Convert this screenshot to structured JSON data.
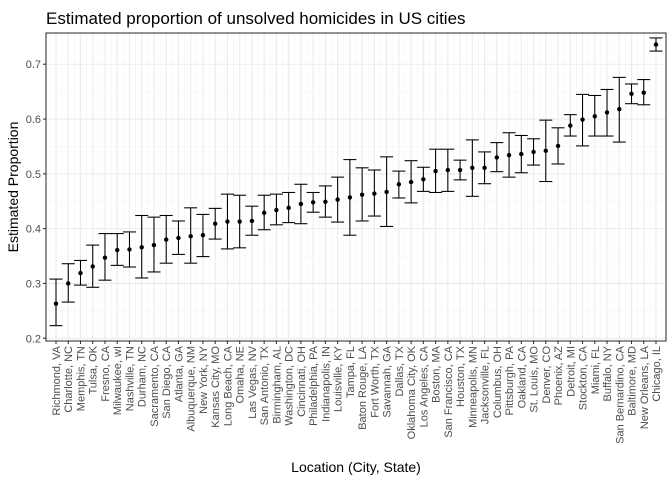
{
  "chart_data": {
    "type": "scatter",
    "title": "Estimated proportion of unsolved homicides in US cities",
    "xlabel": "Location (City, State)",
    "ylabel": "Estimated Proportion",
    "ylim": [
      0.2,
      0.75
    ],
    "yticks": [
      0.2,
      0.3,
      0.4,
      0.5,
      0.6,
      0.7
    ],
    "ytick_labels": [
      "0.2",
      "0.3",
      "0.4",
      "0.5",
      "0.6",
      "0.7"
    ],
    "grid": true,
    "legend": "none",
    "point_color": "#000000",
    "categories": [
      "Richmond, VA",
      "Charlotte, NC",
      "Memphis, TN",
      "Tulsa, OK",
      "Fresno, CA",
      "Milwaukee, wI",
      "Nashville, TN",
      "Durham, NC",
      "Sacramento, CA",
      "San Diego, CA",
      "Atlanta, GA",
      "Albuquerque, NM",
      "New York, NY",
      "Kansas City, MO",
      "Long Beach, CA",
      "Omaha, NE",
      "Las Vegas, NV",
      "San Antonio, TX",
      "Birmingham, AL",
      "Washington, DC",
      "Cincinnati, OH",
      "Philadelphia, PA",
      "Indianapolis, IN",
      "Louisville, KY",
      "Tampa, FL",
      "Baton Rouge, LA",
      "Fort Worth, TX",
      "Savannah, GA",
      "Dallas, TX",
      "Oklahoma City, OK",
      "Los Angeles, CA",
      "Boston, MA",
      "San Francisco, CA",
      "Houston, TX",
      "Minneapolis, MN",
      "Jacksonville, FL",
      "Columbus, OH",
      "Pittsburgh, PA",
      "Oakland, CA",
      "St. Louis, MO",
      "Denver, CO",
      "Phoenix, AZ",
      "Detroit, MI",
      "Stockton, CA",
      "Miami, FL",
      "Buffalo, NY",
      "San Bernardino, CA",
      "Baltimore, MD",
      "New Orleans, LA",
      "Chicago, IL"
    ],
    "estimate": [
      0.263,
      0.3,
      0.319,
      0.331,
      0.347,
      0.361,
      0.362,
      0.366,
      0.37,
      0.38,
      0.383,
      0.386,
      0.388,
      0.409,
      0.413,
      0.413,
      0.414,
      0.429,
      0.434,
      0.438,
      0.445,
      0.448,
      0.449,
      0.453,
      0.457,
      0.462,
      0.464,
      0.467,
      0.481,
      0.485,
      0.49,
      0.505,
      0.507,
      0.507,
      0.511,
      0.511,
      0.53,
      0.534,
      0.536,
      0.54,
      0.542,
      0.551,
      0.588,
      0.599,
      0.605,
      0.612,
      0.618,
      0.646,
      0.648,
      0.736
    ],
    "conf_low": [
      0.223,
      0.266,
      0.297,
      0.293,
      0.306,
      0.333,
      0.33,
      0.31,
      0.321,
      0.337,
      0.353,
      0.337,
      0.349,
      0.381,
      0.363,
      0.365,
      0.388,
      0.398,
      0.407,
      0.411,
      0.409,
      0.43,
      0.421,
      0.412,
      0.388,
      0.414,
      0.423,
      0.404,
      0.456,
      0.447,
      0.468,
      0.466,
      0.468,
      0.489,
      0.459,
      0.482,
      0.504,
      0.494,
      0.502,
      0.516,
      0.486,
      0.518,
      0.569,
      0.551,
      0.569,
      0.569,
      0.558,
      0.628,
      0.626,
      0.724
    ],
    "conf_high": [
      0.308,
      0.336,
      0.342,
      0.37,
      0.391,
      0.391,
      0.394,
      0.424,
      0.421,
      0.424,
      0.414,
      0.438,
      0.426,
      0.437,
      0.463,
      0.461,
      0.441,
      0.461,
      0.463,
      0.466,
      0.481,
      0.466,
      0.478,
      0.494,
      0.526,
      0.511,
      0.507,
      0.531,
      0.505,
      0.524,
      0.512,
      0.545,
      0.545,
      0.525,
      0.562,
      0.54,
      0.557,
      0.575,
      0.57,
      0.564,
      0.598,
      0.584,
      0.608,
      0.645,
      0.643,
      0.654,
      0.676,
      0.664,
      0.672,
      0.748
    ]
  }
}
